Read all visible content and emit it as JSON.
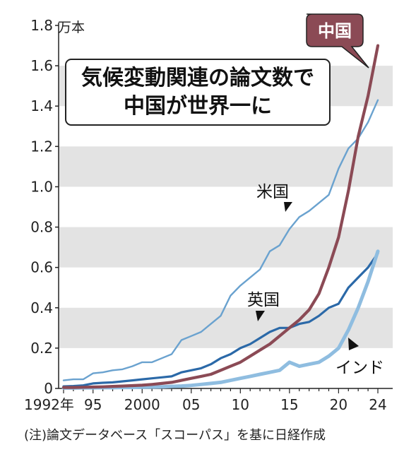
{
  "chart_data": {
    "type": "line",
    "title_lines": [
      "気候変動関連の論文数で",
      "中国が世界一に"
    ],
    "unit": "万本",
    "note": "(注)論文データベース「スコーパス」を基に日経作成",
    "ylim": [
      0,
      1.8
    ],
    "yticks": [
      "0",
      "0.2",
      "0.4",
      "0.6",
      "0.8",
      "1.0",
      "1.2",
      "1.4",
      "1.6",
      "1.8"
    ],
    "xlim": [
      1992,
      2024
    ],
    "xticks": [
      {
        "x": 1992,
        "label": "1992年"
      },
      {
        "x": 1995,
        "label": "95"
      },
      {
        "x": 2000,
        "label": "2000"
      },
      {
        "x": 2005,
        "label": "05"
      },
      {
        "x": 2010,
        "label": "10"
      },
      {
        "x": 2015,
        "label": "15"
      },
      {
        "x": 2020,
        "label": "20"
      },
      {
        "x": 2024,
        "label": "24"
      }
    ],
    "grid": "alternating horizontal bands",
    "x": [
      1992,
      1993,
      1994,
      1995,
      1996,
      1997,
      1998,
      1999,
      2000,
      2001,
      2002,
      2003,
      2004,
      2005,
      2006,
      2007,
      2008,
      2009,
      2010,
      2011,
      2012,
      2013,
      2014,
      2015,
      2016,
      2017,
      2018,
      2019,
      2020,
      2021,
      2022,
      2023,
      2024
    ],
    "series": [
      {
        "name": "米国",
        "color": "#6aa2cf",
        "values": [
          0.04,
          0.045,
          0.045,
          0.075,
          0.08,
          0.09,
          0.095,
          0.11,
          0.13,
          0.13,
          0.15,
          0.17,
          0.24,
          0.26,
          0.28,
          0.32,
          0.36,
          0.46,
          0.51,
          0.55,
          0.59,
          0.68,
          0.71,
          0.79,
          0.85,
          0.88,
          0.92,
          0.96,
          1.09,
          1.19,
          1.24,
          1.32,
          1.43
        ]
      },
      {
        "name": "英国",
        "color": "#2b69a8",
        "values": [
          0.01,
          0.012,
          0.015,
          0.025,
          0.028,
          0.03,
          0.035,
          0.04,
          0.045,
          0.05,
          0.055,
          0.06,
          0.08,
          0.09,
          0.1,
          0.12,
          0.15,
          0.17,
          0.2,
          0.22,
          0.25,
          0.28,
          0.3,
          0.3,
          0.32,
          0.33,
          0.36,
          0.4,
          0.42,
          0.5,
          0.55,
          0.6,
          0.67
        ]
      },
      {
        "name": "インド",
        "color": "#8fbde0",
        "values": [
          0.002,
          0.002,
          0.003,
          0.003,
          0.004,
          0.004,
          0.005,
          0.005,
          0.006,
          0.007,
          0.008,
          0.01,
          0.012,
          0.015,
          0.02,
          0.025,
          0.03,
          0.04,
          0.05,
          0.06,
          0.07,
          0.08,
          0.09,
          0.13,
          0.11,
          0.12,
          0.13,
          0.16,
          0.2,
          0.29,
          0.4,
          0.53,
          0.68
        ]
      },
      {
        "name": "中国",
        "color": "#8b4a55",
        "label_bg": "#8b4a55",
        "values": [
          0.005,
          0.005,
          0.006,
          0.007,
          0.008,
          0.01,
          0.012,
          0.014,
          0.016,
          0.02,
          0.025,
          0.03,
          0.04,
          0.05,
          0.06,
          0.07,
          0.09,
          0.11,
          0.13,
          0.16,
          0.19,
          0.22,
          0.26,
          0.3,
          0.34,
          0.39,
          0.47,
          0.6,
          0.75,
          0.98,
          1.25,
          1.45,
          1.7
        ]
      }
    ]
  }
}
